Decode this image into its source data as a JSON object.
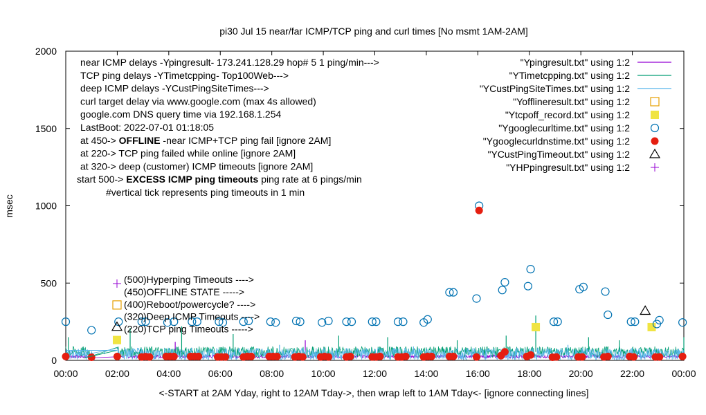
{
  "chart_data": {
    "type": "scatter",
    "title": "pi30 Jul 15  near/far ICMP/TCP ping and curl times [No msmt 1AM-2AM]",
    "xlabel": "<-START at 2AM Yday, right to 12AM Tday->, then wrap left to 1AM Tday<- [ignore connecting lines]",
    "ylabel": "msec",
    "xlim": [
      0,
      24
    ],
    "ylim": [
      0,
      2000
    ],
    "x_ticks": [
      "00:00",
      "02:00",
      "04:00",
      "06:00",
      "08:00",
      "10:00",
      "12:00",
      "14:00",
      "16:00",
      "18:00",
      "20:00",
      "22:00",
      "00:00"
    ],
    "y_ticks": [
      "0",
      "500",
      "1000",
      "1500",
      "2000"
    ],
    "info_lines": [
      "near ICMP delays -Ypingresult- 173.241.128.29 hop# 5 1 ping/min--->",
      "TCP ping delays -YTimetcpping- Top100Web--->",
      "deep ICMP delays -YCustPingSiteTimes--->",
      "curl target delay via www.google.com (max 4s allowed)",
      "google.com DNS query time via 192.168.1.254",
      "LastBoot: 2022-07-01 01:18:05"
    ],
    "threshold_lines": [
      {
        "prefix": "at 450-> ",
        "bold": "OFFLINE",
        "suffix": " -near ICMP+TCP ping fail [ignore 2AM]"
      },
      {
        "prefix": "at 220-> TCP ping failed while online [ignore 2AM]",
        "bold": "",
        "suffix": ""
      },
      {
        "prefix": "at 320-> deep (customer) ICMP timeouts [ignore 2AM]",
        "bold": "",
        "suffix": ""
      },
      {
        "prefix": "start 500-> ",
        "bold": "EXCESS ICMP ping timeouts",
        "suffix": "  ping rate at 6 pings/min"
      }
    ],
    "tick_note": "#vertical tick represents ping timeouts in 1 min",
    "marker_labels": [
      {
        "y": 500,
        "text": "(500)Hyperping Timeouts ---->"
      },
      {
        "y": 450,
        "text": "(450)OFFLINE STATE ----->"
      },
      {
        "y": 400,
        "text": "(400)Reboot/powercycle? ---->"
      },
      {
        "y": 320,
        "text": "(320)Deep ICMP Timeouts ---->"
      },
      {
        "y": 220,
        "text": "(220)TCP ping Timeouts ----->"
      }
    ],
    "legend_position": "top-right",
    "series": [
      {
        "name": "\"Ypingresult.txt\" using 1:2",
        "color": "#9400d3",
        "style": "line",
        "base": 25,
        "noise": 10,
        "spikes": [
          [
            3.05,
            60
          ],
          [
            4.25,
            120
          ],
          [
            9.3,
            130
          ],
          [
            22.7,
            70
          ]
        ]
      },
      {
        "name": "\"YTimetcpping.txt\" using 1:2",
        "color": "#009e73",
        "style": "line",
        "base": 55,
        "noise": 35,
        "spikes": [
          [
            0.1,
            150
          ],
          [
            2.5,
            210
          ],
          [
            4.5,
            220
          ],
          [
            6.5,
            170
          ],
          [
            10.6,
            160
          ],
          [
            12.5,
            150
          ],
          [
            15.2,
            130
          ],
          [
            17.1,
            160
          ],
          [
            18.25,
            290
          ],
          [
            20.3,
            150
          ],
          [
            21.5,
            130
          ],
          [
            24.0,
            150
          ]
        ]
      },
      {
        "name": "\"YCustPingSiteTimes.txt\" using 1:2",
        "color": "#56b4e9",
        "style": "line",
        "base": 40,
        "noise": 40,
        "spikes": [
          [
            1.5,
            60
          ],
          [
            8.3,
            100
          ],
          [
            13.5,
            90
          ],
          [
            19.5,
            100
          ]
        ]
      },
      {
        "name": "\"Yofflineresult.txt\" using 1:2",
        "color": "#e69f00",
        "style": "open-square",
        "x": [],
        "y": []
      },
      {
        "name": "\"Ytcpoff_record.txt\" using 1:2",
        "color": "#f0e442",
        "style": "filled-square",
        "x": [
          18.25,
          22.75
        ],
        "y": [
          215,
          215
        ]
      },
      {
        "name": "\"Ygooglecurltime.txt\" using 1:2",
        "color": "#0072b2",
        "style": "open-circle",
        "x": [
          0.0,
          1.0,
          2.05,
          2.95,
          3.1,
          3.95,
          4.2,
          4.9,
          5.1,
          5.95,
          6.1,
          6.9,
          7.1,
          7.95,
          8.15,
          8.95,
          9.1,
          9.95,
          10.2,
          10.9,
          11.1,
          11.9,
          12.05,
          12.9,
          13.1,
          13.9,
          14.05,
          14.9,
          15.05,
          15.95,
          16.05,
          16.95,
          17.05,
          17.95,
          18.05,
          18.95,
          19.1,
          19.95,
          20.1,
          20.95,
          21.05,
          21.95,
          22.1,
          22.95,
          23.05,
          23.95
        ],
        "y": [
          250,
          195,
          250,
          250,
          250,
          245,
          250,
          250,
          250,
          250,
          245,
          250,
          255,
          250,
          245,
          255,
          250,
          245,
          255,
          250,
          250,
          250,
          250,
          250,
          250,
          245,
          265,
          440,
          440,
          400,
          1000,
          455,
          505,
          480,
          590,
          250,
          250,
          460,
          475,
          445,
          295,
          250,
          250,
          235,
          260,
          245
        ]
      },
      {
        "name": "\"Ygooglecurldnstime.txt\" using 1:2",
        "color": "#e51e10",
        "style": "filled-circle",
        "x": [
          0.0,
          1.0,
          2.0,
          2.95,
          3.1,
          3.25,
          3.9,
          4.05,
          4.2,
          4.85,
          5.0,
          5.15,
          5.9,
          6.05,
          6.2,
          6.9,
          7.05,
          7.2,
          7.9,
          8.05,
          8.2,
          8.9,
          9.05,
          9.2,
          9.9,
          10.05,
          10.2,
          10.9,
          11.05,
          11.9,
          12.05,
          12.2,
          12.9,
          13.05,
          13.2,
          13.9,
          14.05,
          14.2,
          14.9,
          15.05,
          15.95,
          16.05,
          16.9,
          17.05,
          17.9,
          18.05,
          18.9,
          19.05,
          19.9,
          20.05,
          20.9,
          21.05,
          21.9,
          22.05,
          22.9,
          23.05,
          23.95
        ],
        "y": [
          25,
          20,
          25,
          22,
          24,
          22,
          25,
          25,
          25,
          25,
          25,
          25,
          22,
          22,
          22,
          22,
          25,
          25,
          25,
          25,
          25,
          22,
          25,
          22,
          22,
          25,
          22,
          22,
          25,
          22,
          22,
          25,
          22,
          22,
          25,
          22,
          25,
          25,
          25,
          25,
          22,
          970,
          30,
          55,
          25,
          35,
          20,
          22,
          22,
          22,
          22,
          25,
          25,
          22,
          22,
          22,
          25
        ]
      },
      {
        "name": "\"YCustPingTimeout.txt\" using 1:2",
        "color": "#000000",
        "style": "open-triangle",
        "x": [
          22.5
        ],
        "y": [
          320
        ]
      },
      {
        "name": "\"YHPpingresult.txt\" using 1:2",
        "color": "#9400d3",
        "style": "plus",
        "x": [],
        "y": []
      }
    ]
  }
}
